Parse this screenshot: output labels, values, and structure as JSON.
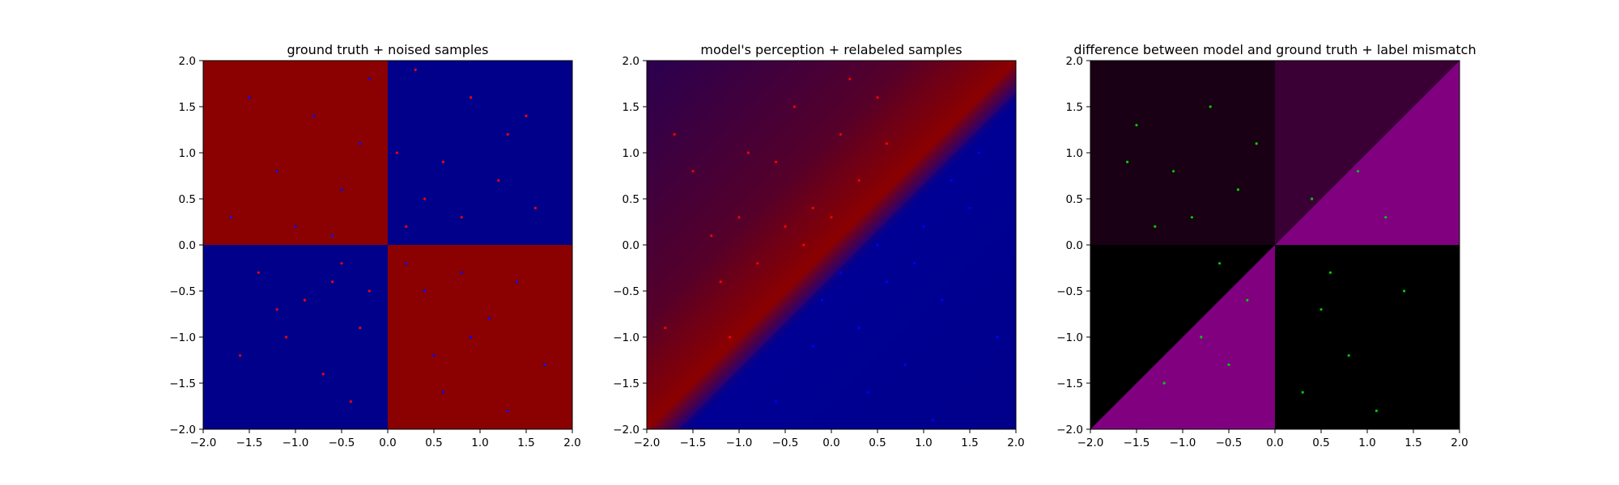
{
  "chart_data": [
    {
      "type": "heatmap",
      "title": "ground truth + noised samples",
      "xlim": [
        -2.0,
        2.0
      ],
      "ylim": [
        -2.0,
        2.0
      ],
      "xticks": [
        "−2.0",
        "−1.5",
        "−1.0",
        "−0.5",
        "0.0",
        "0.5",
        "1.0",
        "1.5",
        "2.0"
      ],
      "yticks": [
        "−2.0",
        "−1.5",
        "−1.0",
        "−0.5",
        "0.0",
        "0.5",
        "1.0",
        "1.5",
        "2.0"
      ],
      "grid": false,
      "background": "quadrant sign pattern: red where x*y<0, blue where x*y>0",
      "colors": {
        "red_region": "#8b0000",
        "blue_region": "#00008b",
        "red_points": "#ff0000",
        "blue_points": "#0000ff"
      },
      "scatter": [
        {
          "color": "red",
          "points": [
            [
              0.3,
              1.9
            ],
            [
              0.9,
              1.6
            ],
            [
              1.3,
              1.2
            ],
            [
              0.6,
              0.9
            ],
            [
              0.4,
              0.5
            ],
            [
              1.6,
              0.4
            ],
            [
              1.2,
              0.7
            ],
            [
              0.2,
              0.2
            ],
            [
              0.8,
              0.3
            ],
            [
              1.5,
              1.4
            ],
            [
              0.1,
              1.0
            ],
            [
              -1.4,
              -0.3
            ],
            [
              -0.9,
              -0.6
            ],
            [
              -0.5,
              -0.2
            ],
            [
              -0.3,
              -0.9
            ],
            [
              -1.1,
              -1.0
            ],
            [
              -0.7,
              -1.4
            ],
            [
              -0.2,
              -0.5
            ],
            [
              -1.6,
              -1.2
            ],
            [
              -0.4,
              -1.7
            ],
            [
              -1.2,
              -0.7
            ],
            [
              -0.6,
              -0.4
            ]
          ]
        },
        {
          "color": "blue",
          "points": [
            [
              -1.5,
              1.6
            ],
            [
              -1.2,
              0.8
            ],
            [
              -0.8,
              1.4
            ],
            [
              -0.5,
              0.6
            ],
            [
              -1.7,
              0.3
            ],
            [
              -0.3,
              1.1
            ],
            [
              -1.0,
              0.2
            ],
            [
              -0.2,
              1.8
            ],
            [
              -0.6,
              0.1
            ],
            [
              0.4,
              -0.5
            ],
            [
              0.9,
              -1.0
            ],
            [
              1.4,
              -0.4
            ],
            [
              0.6,
              -1.6
            ],
            [
              1.1,
              -0.8
            ],
            [
              0.2,
              -0.2
            ],
            [
              1.7,
              -1.3
            ],
            [
              0.8,
              -0.3
            ],
            [
              1.3,
              -1.8
            ],
            [
              0.5,
              -1.2
            ]
          ]
        }
      ]
    },
    {
      "type": "heatmap",
      "title": "model's perception + relabeled samples",
      "xlim": [
        -2.0,
        2.0
      ],
      "ylim": [
        -2.0,
        2.0
      ],
      "xticks": [
        "−2.0",
        "−1.5",
        "−1.0",
        "−0.5",
        "0.0",
        "0.5",
        "1.0",
        "1.5",
        "2.0"
      ],
      "yticks": [
        "−2.0",
        "−1.5",
        "−1.0",
        "−0.5",
        "0.0",
        "0.5",
        "1.0",
        "1.5",
        "2.0"
      ],
      "grid": false,
      "background": "diagonal gradient: red above y=x, blue below y=x, smooth band around the diagonal",
      "colors": {
        "red_region": "#8b0000",
        "blue_region": "#00008b",
        "red_points": "#ff0000",
        "blue_points": "#0000ff"
      },
      "scatter": [
        {
          "color": "red",
          "points": [
            [
              -1.5,
              0.8
            ],
            [
              -1.0,
              0.3
            ],
            [
              -0.6,
              0.9
            ],
            [
              -0.2,
              0.4
            ],
            [
              0.1,
              1.2
            ],
            [
              -0.8,
              -0.2
            ],
            [
              -1.2,
              -0.4
            ],
            [
              0.3,
              0.7
            ],
            [
              -0.4,
              1.5
            ],
            [
              -1.7,
              1.2
            ],
            [
              -0.9,
              1.0
            ],
            [
              0.0,
              0.3
            ],
            [
              0.5,
              1.6
            ],
            [
              -1.3,
              0.1
            ],
            [
              -0.5,
              0.2
            ],
            [
              -1.8,
              -0.9
            ],
            [
              -1.1,
              -1.0
            ],
            [
              0.2,
              1.8
            ],
            [
              -0.3,
              0.0
            ],
            [
              0.6,
              1.1
            ]
          ]
        },
        {
          "color": "blue",
          "points": [
            [
              0.6,
              -0.4
            ],
            [
              1.0,
              0.2
            ],
            [
              0.3,
              -0.9
            ],
            [
              1.5,
              0.4
            ],
            [
              0.8,
              -1.3
            ],
            [
              -0.2,
              -1.1
            ],
            [
              1.2,
              -0.6
            ],
            [
              0.1,
              -0.3
            ],
            [
              1.8,
              -1.0
            ],
            [
              0.4,
              -1.6
            ],
            [
              -0.6,
              -1.7
            ],
            [
              1.1,
              -1.9
            ],
            [
              0.5,
              0.0
            ],
            [
              1.6,
              1.0
            ],
            [
              -0.1,
              -0.6
            ],
            [
              0.9,
              -0.2
            ],
            [
              1.3,
              0.7
            ]
          ]
        }
      ]
    },
    {
      "type": "heatmap",
      "title": "difference between model and ground truth + label mismatch",
      "xlim": [
        -2.0,
        2.0
      ],
      "ylim": [
        -2.0,
        2.0
      ],
      "xticks": [
        "−2.0",
        "−1.5",
        "−1.0",
        "−0.5",
        "0.0",
        "0.5",
        "1.0",
        "1.5",
        "2.0"
      ],
      "yticks": [
        "−2.0",
        "−1.5",
        "−1.0",
        "−0.5",
        "0.0",
        "0.5",
        "1.0",
        "1.5",
        "2.0"
      ],
      "grid": false,
      "background": "magenta where model disagrees with ground truth, black where they agree",
      "colors": {
        "mismatch": "#800080",
        "match": "#000000",
        "points": "#00cc00"
      },
      "scatter": [
        {
          "color": "green",
          "points": [
            [
              -1.5,
              1.3
            ],
            [
              -1.1,
              0.8
            ],
            [
              -0.7,
              1.5
            ],
            [
              -0.4,
              0.6
            ],
            [
              -1.3,
              0.2
            ],
            [
              -0.2,
              1.1
            ],
            [
              0.4,
              0.5
            ],
            [
              0.9,
              0.8
            ],
            [
              1.2,
              0.3
            ],
            [
              -0.3,
              -0.6
            ],
            [
              -0.8,
              -1.0
            ],
            [
              -1.2,
              -1.5
            ],
            [
              -0.5,
              -1.3
            ],
            [
              0.5,
              -0.7
            ],
            [
              0.8,
              -1.2
            ],
            [
              1.4,
              -0.5
            ],
            [
              0.3,
              -1.6
            ],
            [
              1.1,
              -1.8
            ],
            [
              -1.6,
              0.9
            ],
            [
              -0.9,
              0.3
            ],
            [
              0.6,
              -0.3
            ],
            [
              -0.6,
              -0.2
            ]
          ]
        }
      ]
    }
  ]
}
